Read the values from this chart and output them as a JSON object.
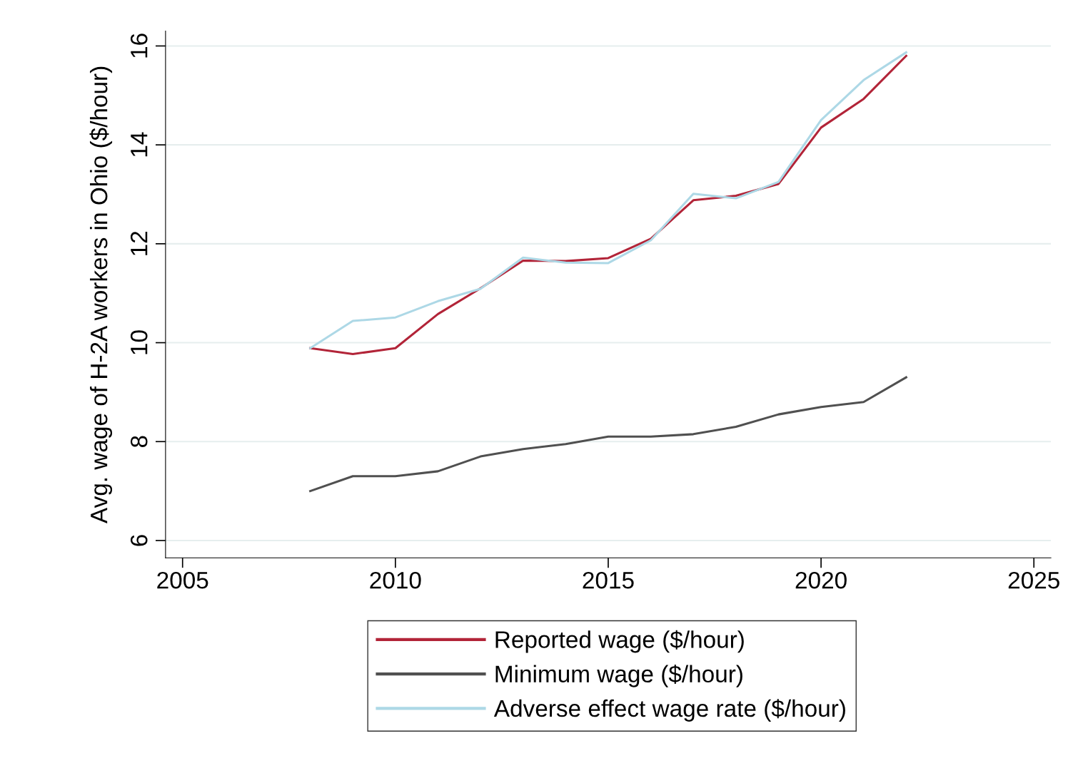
{
  "chart_data": {
    "type": "line",
    "ylabel": "Avg. wage of H-2A workers in Ohio ($/hour)",
    "x": [
      2008,
      2009,
      2010,
      2011,
      2012,
      2013,
      2014,
      2015,
      2016,
      2017,
      2018,
      2019,
      2020,
      2021,
      2022
    ],
    "series": [
      {
        "name": "Reported wage ($/hour)",
        "color": "#b22438",
        "values": [
          9.89,
          9.77,
          9.89,
          10.58,
          11.1,
          11.66,
          11.65,
          11.71,
          12.1,
          12.88,
          12.97,
          13.21,
          14.35,
          14.93,
          15.8
        ]
      },
      {
        "name": "Minimum wage ($/hour)",
        "color": "#505050",
        "values": [
          7.0,
          7.3,
          7.3,
          7.4,
          7.7,
          7.85,
          7.95,
          8.1,
          8.1,
          8.15,
          8.3,
          8.55,
          8.7,
          8.8,
          9.3
        ]
      },
      {
        "name": "Adverse effect wage rate ($/hour)",
        "color": "#add8e6",
        "values": [
          9.89,
          10.44,
          10.51,
          10.84,
          11.09,
          11.72,
          11.62,
          11.61,
          12.07,
          13.01,
          12.92,
          13.25,
          14.5,
          15.31,
          15.87
        ]
      }
    ],
    "xlim": [
      2004.6,
      2025.4
    ],
    "xticks": [
      2005,
      2010,
      2015,
      2020,
      2025
    ],
    "ylim": [
      5.65,
      16.3
    ],
    "yticks": [
      6,
      8,
      10,
      12,
      14,
      16
    ],
    "grid": "y",
    "legend": "bottom",
    "marker": "none",
    "line_style": "solid"
  }
}
